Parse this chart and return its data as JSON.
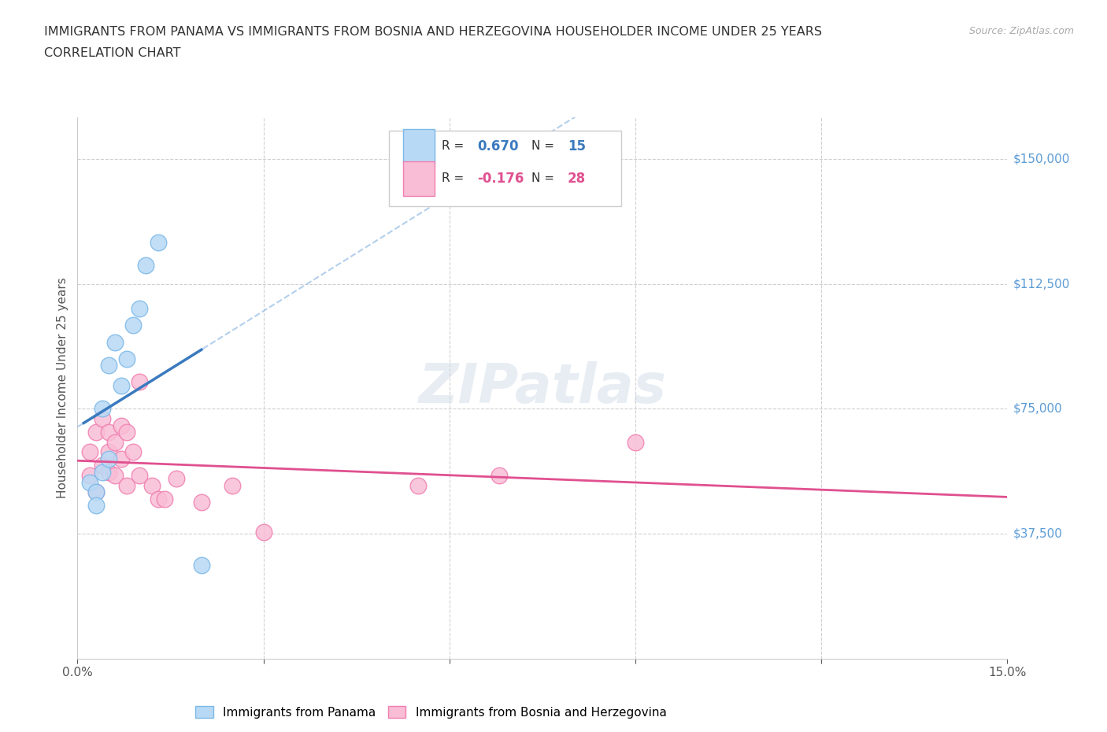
{
  "title_line1": "IMMIGRANTS FROM PANAMA VS IMMIGRANTS FROM BOSNIA AND HERZEGOVINA HOUSEHOLDER INCOME UNDER 25 YEARS",
  "title_line2": "CORRELATION CHART",
  "source": "Source: ZipAtlas.com",
  "ylabel": "Householder Income Under 25 years",
  "xlim": [
    0.0,
    0.15
  ],
  "ylim": [
    0,
    162500
  ],
  "xtick_positions": [
    0.0,
    0.03,
    0.06,
    0.09,
    0.12,
    0.15
  ],
  "xtick_labels": [
    "0.0%",
    "",
    "",
    "",
    "",
    "15.0%"
  ],
  "ytick_positions": [
    37500,
    75000,
    112500,
    150000
  ],
  "ytick_labels": [
    "$37,500",
    "$75,000",
    "$112,500",
    "$150,000"
  ],
  "panama_color": "#7ab8e8",
  "panama_fill": "#b8d9f5",
  "bosnia_color": "#f07eb0",
  "bosnia_fill": "#f9bdd5",
  "R_panama": 0.67,
  "N_panama": 15,
  "R_bosnia": -0.176,
  "N_bosnia": 28,
  "panama_x": [
    0.002,
    0.003,
    0.003,
    0.004,
    0.004,
    0.005,
    0.005,
    0.006,
    0.007,
    0.008,
    0.009,
    0.01,
    0.011,
    0.013,
    0.02
  ],
  "panama_y": [
    53000,
    50000,
    46000,
    56000,
    75000,
    60000,
    88000,
    95000,
    82000,
    90000,
    100000,
    105000,
    118000,
    125000,
    28000
  ],
  "bosnia_x": [
    0.002,
    0.002,
    0.003,
    0.003,
    0.004,
    0.004,
    0.005,
    0.005,
    0.005,
    0.006,
    0.006,
    0.007,
    0.007,
    0.008,
    0.008,
    0.009,
    0.01,
    0.01,
    0.012,
    0.013,
    0.014,
    0.016,
    0.02,
    0.025,
    0.03,
    0.055,
    0.068,
    0.09
  ],
  "bosnia_y": [
    55000,
    62000,
    50000,
    68000,
    58000,
    72000,
    62000,
    56000,
    68000,
    55000,
    65000,
    70000,
    60000,
    68000,
    52000,
    62000,
    83000,
    55000,
    52000,
    48000,
    48000,
    54000,
    47000,
    52000,
    38000,
    52000,
    55000,
    65000
  ],
  "background_color": "#ffffff",
  "grid_color": "#d0d0d0",
  "trendline_panama_color": "#3a7abf",
  "trendline_bosnia_color": "#e05090",
  "trendline_dash_color": "#a0c4e8"
}
